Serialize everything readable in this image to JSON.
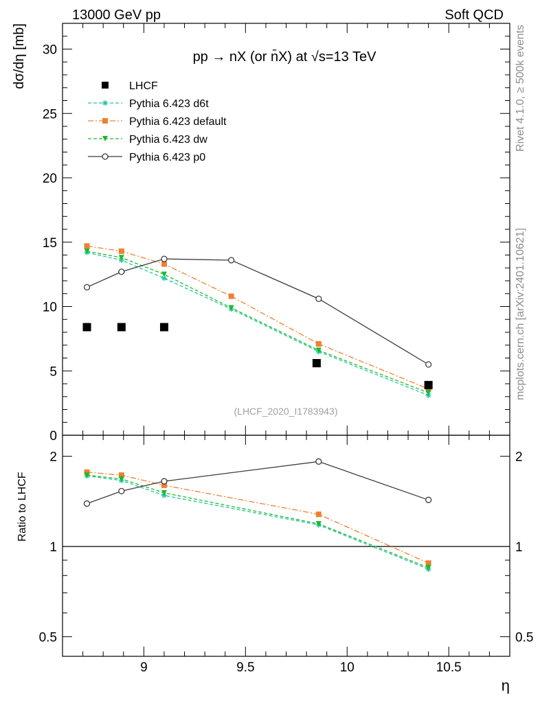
{
  "header": {
    "left": "13000 GeV pp",
    "right": "Soft QCD"
  },
  "side_labels": {
    "top": "Rivet 4.1.0, ≥ 500k events",
    "bottom": "mcplots.cern.ch [arXiv:2401.10621]"
  },
  "chart_data": {
    "type": "scatter",
    "title": "pp → nX (or n̄X) at √s=13 TeV",
    "watermark": "(LHCF_2020_I1783943)",
    "xlabel": "η",
    "xlim": [
      8.6,
      10.8
    ],
    "x_ticks": [
      9,
      9.5,
      10,
      10.5
    ],
    "x_tick_labels": [
      "9",
      "9.5",
      "10",
      "10.5"
    ],
    "main": {
      "ylabel": "dσ/dη [mb]",
      "ylim": [
        0,
        32
      ],
      "y_ticks": [
        0,
        5,
        10,
        15,
        20,
        25,
        30
      ],
      "y_tick_labels": [
        "0",
        "5",
        "10",
        "15",
        "20",
        "25",
        "30"
      ]
    },
    "ratio": {
      "ylabel": "Ratio to LHCF",
      "scale": "log",
      "ylim": [
        0.43,
        2.35
      ],
      "y_ticks": [
        0.5,
        1,
        2
      ],
      "y_tick_labels": [
        "0.5",
        "1",
        "2"
      ],
      "reference": 1
    },
    "series": [
      {
        "name": "LHCF",
        "role": "data",
        "color": "#000000",
        "marker": "filled-square",
        "line": "none",
        "x": [
          8.72,
          8.89,
          9.1,
          9.85,
          10.4
        ],
        "y": [
          8.4,
          8.4,
          8.4,
          5.6,
          3.9
        ]
      },
      {
        "name": "Pythia 6.423 d6t",
        "color": "#1fc7a0",
        "marker": "star",
        "line": "dashed",
        "x": [
          8.72,
          8.89,
          9.1,
          9.43,
          9.86,
          10.4
        ],
        "y": [
          14.2,
          13.6,
          12.2,
          9.8,
          6.5,
          3.1
        ],
        "ratio_x": [
          8.72,
          8.89,
          9.1,
          9.86,
          10.4
        ],
        "ratio": [
          1.72,
          1.66,
          1.48,
          1.18,
          0.84
        ]
      },
      {
        "name": "Pythia 6.423 default",
        "color": "#f08030",
        "marker": "filled-square",
        "line": "dash-dot",
        "x": [
          8.72,
          8.89,
          9.1,
          9.43,
          9.86,
          10.4
        ],
        "y": [
          14.7,
          14.3,
          13.3,
          10.8,
          7.1,
          3.6
        ],
        "ratio_x": [
          8.72,
          8.89,
          9.1,
          9.86,
          10.4
        ],
        "ratio": [
          1.77,
          1.73,
          1.6,
          1.28,
          0.88
        ]
      },
      {
        "name": "Pythia 6.423 dw",
        "color": "#1fb82a",
        "marker": "filled-triangle-down",
        "line": "dashed",
        "x": [
          8.72,
          8.89,
          9.1,
          9.43,
          9.86,
          10.4
        ],
        "y": [
          14.3,
          13.8,
          12.5,
          9.9,
          6.6,
          3.3
        ],
        "ratio_x": [
          8.72,
          8.89,
          9.1,
          9.86,
          10.4
        ],
        "ratio": [
          1.73,
          1.68,
          1.51,
          1.19,
          0.85
        ]
      },
      {
        "name": "Pythia 6.423 p0",
        "color": "#3a3a3a",
        "marker": "open-circle",
        "line": "solid",
        "x": [
          8.72,
          8.89,
          9.1,
          9.43,
          9.86,
          10.4
        ],
        "y": [
          11.5,
          12.7,
          13.7,
          13.6,
          10.6,
          5.5
        ],
        "ratio_x": [
          8.72,
          8.89,
          9.1,
          9.86,
          10.4
        ],
        "ratio": [
          1.39,
          1.53,
          1.65,
          1.92,
          1.43
        ]
      }
    ]
  }
}
